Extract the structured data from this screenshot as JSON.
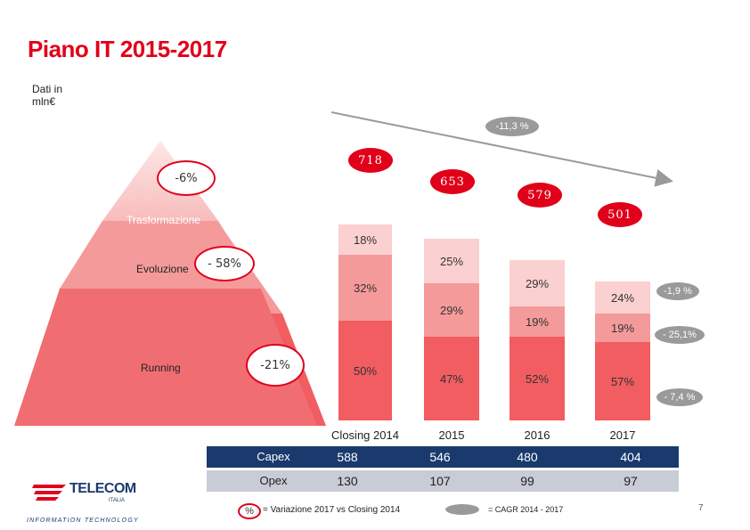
{
  "title": "Piano IT 2015-2017",
  "unit": "Dati in mln€",
  "trend_label": "-11,3 %",
  "pyramid": {
    "top_pct": "-6%",
    "labels": [
      "Trasformazione",
      "Evoluzione",
      "Running"
    ],
    "mid_pct": "- 58%",
    "bottom_pct": "-21%"
  },
  "chart_data": {
    "type": "bar",
    "categories": [
      "Closing 2014",
      "2015",
      "2016",
      "2017"
    ],
    "totals": [
      "718",
      "653",
      "579",
      "501"
    ],
    "series": [
      {
        "name": "Running",
        "values": [
          "50%",
          "47%",
          "52%",
          "57%"
        ]
      },
      {
        "name": "Evoluzione",
        "values": [
          "32%",
          "29%",
          "19%",
          "19%"
        ]
      },
      {
        "name": "Trasformazione",
        "values": [
          "18%",
          "25%",
          "29%",
          "24%"
        ]
      }
    ],
    "cagr": [
      "-1,9 %",
      "- 25,1%",
      "- 7,4 %"
    ]
  },
  "table": {
    "rows": [
      {
        "label": "Capex",
        "values": [
          "588",
          "546",
          "480",
          "404"
        ]
      },
      {
        "label": "Opex",
        "values": [
          "130",
          "107",
          "99",
          "97"
        ]
      }
    ]
  },
  "legend": {
    "pct_symbol": "%",
    "pct_text": "= Variazione 2017 vs Closing 2014",
    "cagr_text": "= CAGR 2014 - 2017"
  },
  "logo": {
    "name": "TELECOM",
    "sub": "ITALIA",
    "tagline": "INFORMATION TECHNOLOGY"
  },
  "page_number": "7",
  "colors": {
    "red": "#e1001a",
    "running": "#f15d61",
    "evoluzione": "#f59a9a",
    "trasformazione": "#fbd0d0",
    "navy": "#1a3a6e",
    "grey": "#9a9a9a"
  }
}
